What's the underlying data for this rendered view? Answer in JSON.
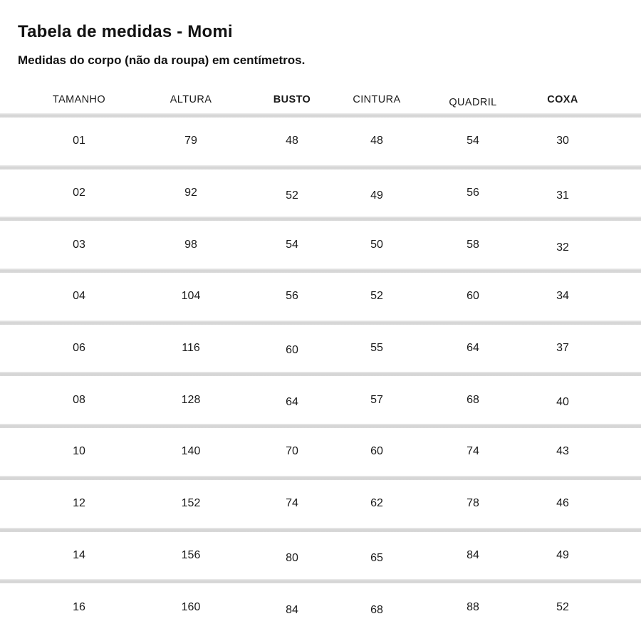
{
  "chart_data": {
    "type": "table",
    "title": "Tabela de medidas - Momi",
    "subtitle": "Medidas do corpo (não da roupa) em centímetros.",
    "columns": [
      "TAMANHO",
      "ALTURA",
      "BUSTO",
      "CINTURA",
      "QUADRIL",
      "COXA"
    ],
    "rows": [
      [
        "01",
        "79",
        "48",
        "48",
        "54",
        "30"
      ],
      [
        "02",
        "92",
        "52",
        "49",
        "56",
        "31"
      ],
      [
        "03",
        "98",
        "54",
        "50",
        "58",
        "32"
      ],
      [
        "04",
        "104",
        "56",
        "52",
        "60",
        "34"
      ],
      [
        "06",
        "116",
        "60",
        "55",
        "64",
        "37"
      ],
      [
        "08",
        "128",
        "64",
        "57",
        "68",
        "40"
      ],
      [
        "10",
        "140",
        "70",
        "60",
        "74",
        "43"
      ],
      [
        "12",
        "152",
        "74",
        "62",
        "78",
        "46"
      ],
      [
        "14",
        "156",
        "80",
        "65",
        "84",
        "49"
      ],
      [
        "16",
        "160",
        "84",
        "68",
        "88",
        "52"
      ]
    ],
    "text_color": "#1a1a1a",
    "divider_color": "#d6d6d6",
    "background_color": "#ffffff"
  }
}
